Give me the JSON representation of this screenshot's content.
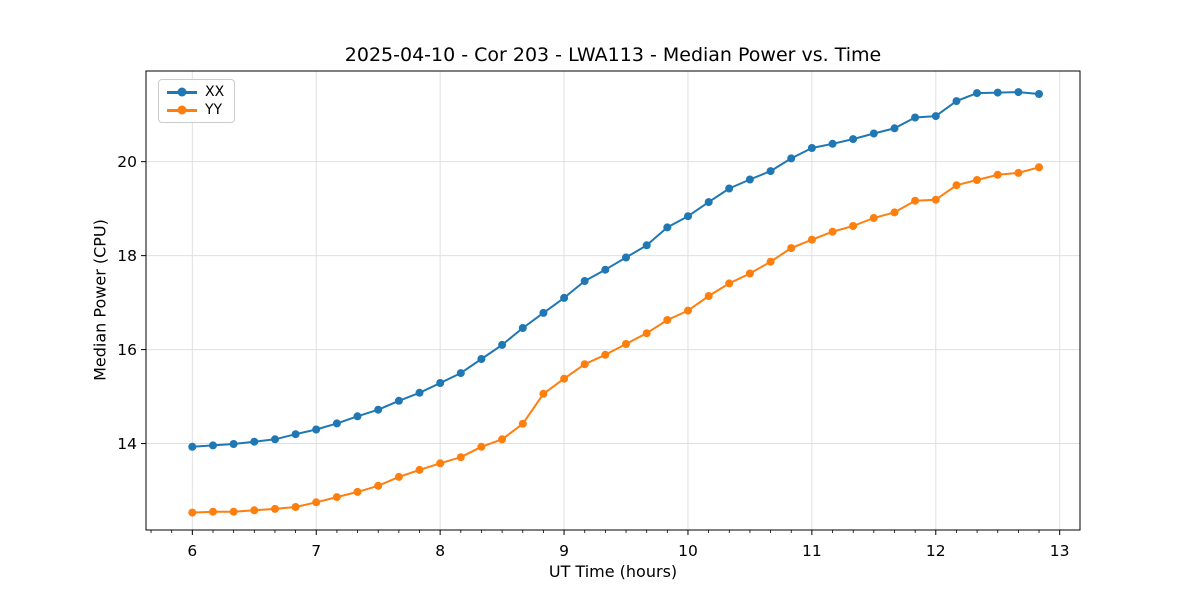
{
  "window": {
    "background": "#ffffff"
  },
  "chart_data": {
    "type": "line",
    "title": "2025-04-10 - Cor 203 - LWA113 - Median Power vs. Time",
    "xlabel": "UT Time (hours)",
    "ylabel": "Median Power (CPU)",
    "xlim": [
      5.626,
      13.164
    ],
    "ylim": [
      12.16,
      21.93
    ],
    "xticks": [
      6,
      7,
      8,
      9,
      10,
      11,
      12,
      13
    ],
    "yticks": [
      14,
      16,
      18,
      20
    ],
    "x_minor_tick_step": 0.16667,
    "grid": true,
    "grid_color": "#e0e0e0",
    "spine_color": "#000000",
    "legend_position": "upper-left",
    "marker": "circle",
    "x": [
      6.0,
      6.167,
      6.333,
      6.5,
      6.667,
      6.833,
      7.0,
      7.167,
      7.333,
      7.5,
      7.667,
      7.833,
      8.0,
      8.167,
      8.333,
      8.5,
      8.667,
      8.833,
      9.0,
      9.167,
      9.333,
      9.5,
      9.667,
      9.833,
      10.0,
      10.167,
      10.333,
      10.5,
      10.667,
      10.833,
      11.0,
      11.167,
      11.333,
      11.5,
      11.667,
      11.833,
      12.0,
      12.167,
      12.333,
      12.5,
      12.667,
      12.833
    ],
    "series": [
      {
        "name": "XX",
        "color": "#1f77b4",
        "values": [
          13.93,
          13.96,
          13.99,
          14.04,
          14.09,
          14.2,
          14.3,
          14.43,
          14.58,
          14.72,
          14.91,
          15.08,
          15.29,
          15.5,
          15.8,
          16.1,
          16.46,
          16.78,
          17.1,
          17.46,
          17.7,
          17.96,
          18.22,
          18.6,
          18.84,
          19.14,
          19.43,
          19.62,
          19.8,
          20.07,
          20.29,
          20.38,
          20.48,
          20.6,
          20.71,
          20.94,
          20.97,
          21.29,
          21.46,
          21.47,
          21.48,
          21.44
        ]
      },
      {
        "name": "YY",
        "color": "#ff7f0e",
        "values": [
          12.53,
          12.55,
          12.55,
          12.58,
          12.61,
          12.65,
          12.75,
          12.86,
          12.97,
          13.1,
          13.29,
          13.44,
          13.58,
          13.71,
          13.93,
          14.09,
          14.42,
          15.06,
          15.38,
          15.69,
          15.89,
          16.12,
          16.35,
          16.63,
          16.83,
          17.14,
          17.41,
          17.62,
          17.87,
          18.16,
          18.34,
          18.51,
          18.63,
          18.8,
          18.92,
          19.17,
          19.19,
          19.5,
          19.61,
          19.72,
          19.76,
          19.88
        ]
      }
    ]
  }
}
